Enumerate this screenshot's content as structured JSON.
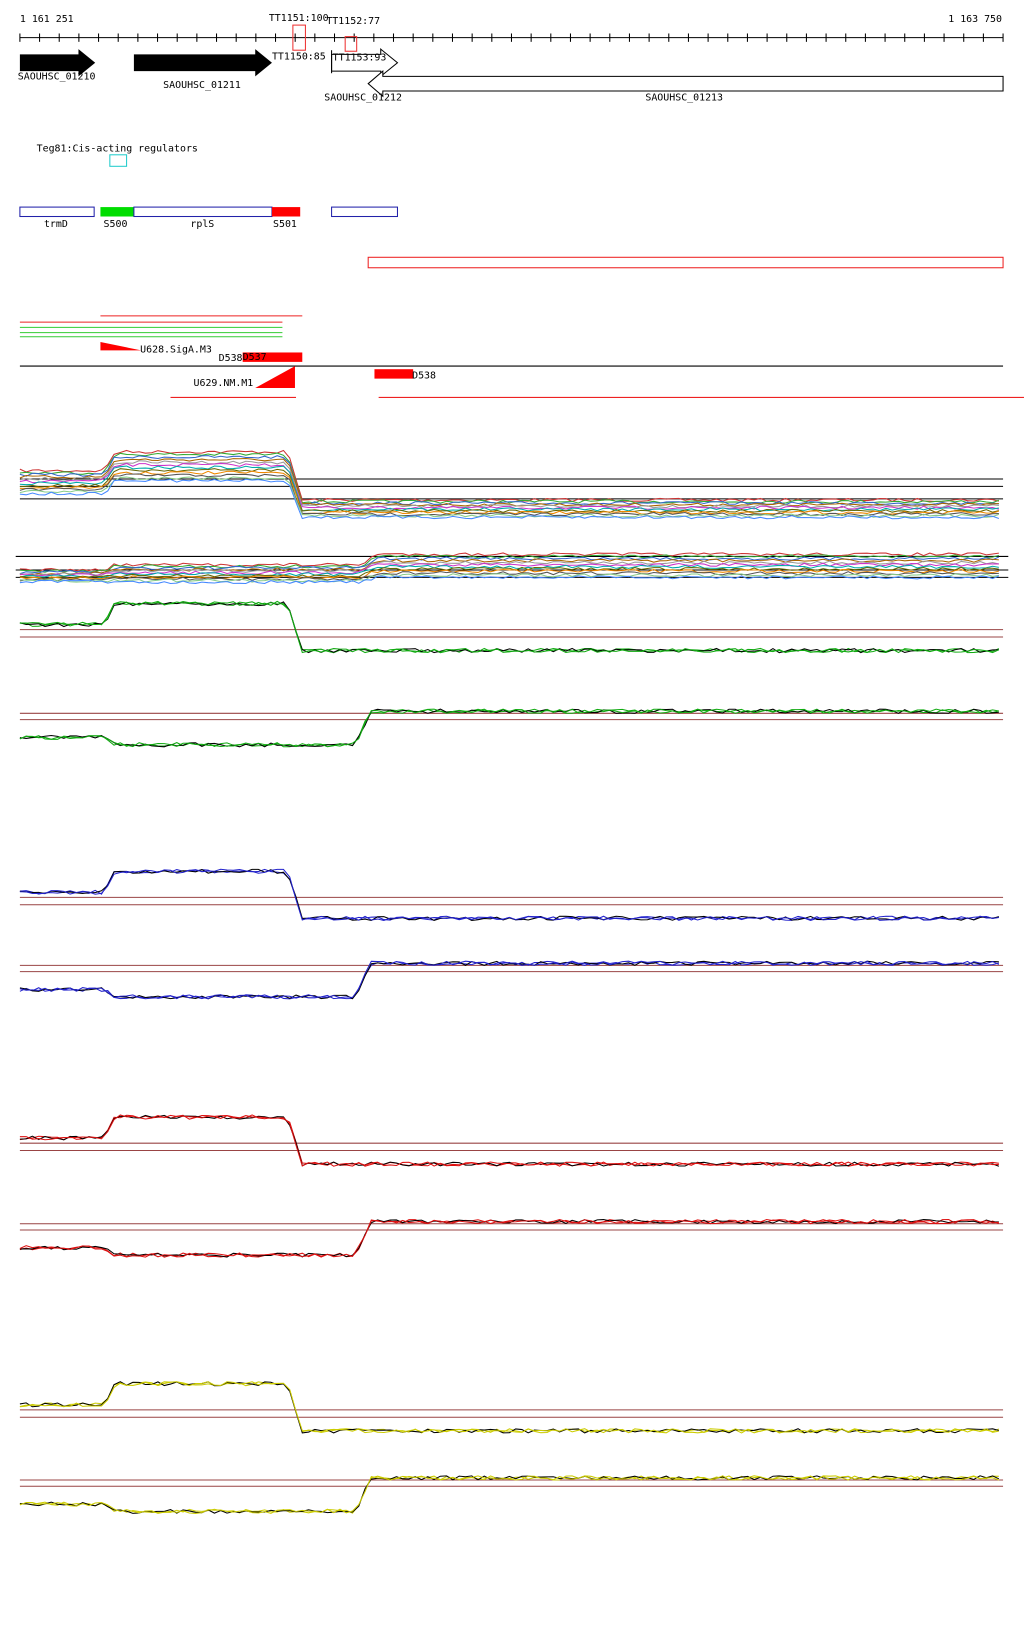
{
  "axis": {
    "start": "1 161 251",
    "end": "1 163 750"
  },
  "terminators": [
    "TT1151:100",
    "TT1152:77",
    "TT1150:85",
    "TT1153:93"
  ],
  "genes": [
    "SAOUHSC_01210",
    "SAOUHSC_01211",
    "SAOUHSC_01212",
    "SAOUHSC_01213"
  ],
  "regulator": "Teg81:Cis-acting regulators",
  "segments": [
    "trmD",
    "S500",
    "rplS",
    "S501"
  ],
  "promoters": [
    "U628.SigA.M3",
    "D538",
    "D537",
    "U629.NM.M1",
    "D538"
  ]
}
